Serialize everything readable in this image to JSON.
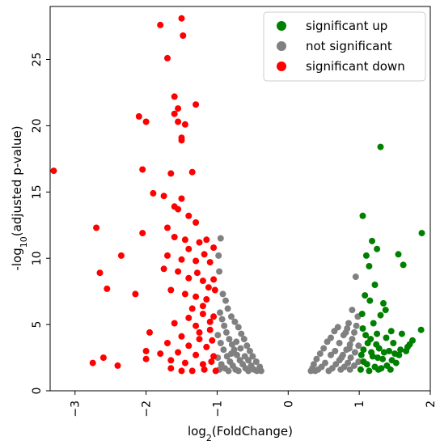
{
  "chart_data": {
    "type": "scatter",
    "title": "",
    "xlabel": "log₂(FoldChange)",
    "xlabel_base": "log",
    "xlabel_sub": "2",
    "xlabel_rest": "(FoldChange)",
    "ylabel": "-log₁₀(adjusted p-value)",
    "ylabel_base": "-log",
    "ylabel_sub": "10",
    "ylabel_rest": "(adjusted p-value)",
    "xlim": [
      -3.35,
      2.0
    ],
    "ylim": [
      0,
      29.0
    ],
    "xticks": [
      -3,
      -2,
      -1,
      0,
      1,
      2
    ],
    "xtick_labels": [
      "−3",
      "−2",
      "−1",
      "0",
      "1",
      "2"
    ],
    "yticks": [
      0,
      5,
      10,
      15,
      20,
      25
    ],
    "ytick_labels": [
      "0",
      "5",
      "10",
      "15",
      "20",
      "25"
    ],
    "grid": false,
    "legend_position": "top-right",
    "series": [
      {
        "name": "significant up",
        "color": "#008000",
        "points": [
          [
            1.3,
            18.4
          ],
          [
            1.88,
            11.9
          ],
          [
            1.05,
            13.2
          ],
          [
            1.18,
            11.3
          ],
          [
            1.25,
            10.7
          ],
          [
            1.1,
            10.2
          ],
          [
            1.55,
            10.3
          ],
          [
            1.14,
            9.4
          ],
          [
            1.62,
            9.5
          ],
          [
            1.22,
            8.0
          ],
          [
            1.08,
            7.2
          ],
          [
            1.15,
            6.8
          ],
          [
            1.34,
            6.6
          ],
          [
            1.37,
            6.1
          ],
          [
            1.04,
            5.8
          ],
          [
            1.3,
            5.7
          ],
          [
            1.2,
            5.1
          ],
          [
            1.87,
            4.6
          ],
          [
            1.45,
            4.5
          ],
          [
            1.6,
            4.3
          ],
          [
            1.75,
            3.8
          ],
          [
            1.12,
            3.6
          ],
          [
            1.68,
            3.3
          ],
          [
            1.58,
            3.1
          ],
          [
            1.35,
            2.9
          ],
          [
            1.05,
            4.7
          ],
          [
            1.09,
            4.2
          ],
          [
            1.16,
            3.9
          ],
          [
            1.24,
            3.5
          ],
          [
            1.28,
            3.2
          ],
          [
            1.42,
            3.0
          ],
          [
            1.5,
            2.8
          ],
          [
            1.19,
            2.6
          ],
          [
            1.33,
            2.4
          ],
          [
            1.46,
            2.3
          ],
          [
            1.06,
            2.2
          ],
          [
            1.11,
            2.0
          ],
          [
            1.22,
            1.8
          ],
          [
            1.39,
            1.9
          ],
          [
            1.52,
            2.1
          ],
          [
            1.02,
            1.6
          ],
          [
            1.14,
            1.5
          ],
          [
            1.27,
            1.6
          ],
          [
            1.31,
            1.7
          ],
          [
            1.44,
            1.6
          ],
          [
            1.06,
            3.1
          ],
          [
            1.17,
            2.9
          ],
          [
            1.26,
            2.5
          ],
          [
            1.03,
            2.7
          ],
          [
            1.38,
            4.0
          ],
          [
            1.48,
            3.6
          ],
          [
            1.56,
            2.7
          ],
          [
            1.66,
            3.0
          ],
          [
            1.71,
            3.5
          ],
          [
            1.25,
            4.3
          ]
        ]
      },
      {
        "name": "not significant",
        "color": "#808080",
        "points": [
          [
            -0.95,
            11.5
          ],
          [
            -0.98,
            10.2
          ],
          [
            -0.97,
            9.0
          ],
          [
            -0.92,
            7.3
          ],
          [
            -0.88,
            6.8
          ],
          [
            -0.85,
            6.2
          ],
          [
            -0.8,
            5.6
          ],
          [
            -0.75,
            5.2
          ],
          [
            -0.7,
            4.8
          ],
          [
            -0.66,
            4.3
          ],
          [
            -0.62,
            3.9
          ],
          [
            -0.58,
            3.4
          ],
          [
            -0.54,
            3.0
          ],
          [
            -0.5,
            2.6
          ],
          [
            -0.45,
            2.2
          ],
          [
            -0.4,
            1.8
          ],
          [
            -0.38,
            1.5
          ],
          [
            -0.96,
            5.9
          ],
          [
            -0.93,
            5.4
          ],
          [
            -0.9,
            4.9
          ],
          [
            -0.87,
            4.4
          ],
          [
            -0.83,
            3.9
          ],
          [
            -0.79,
            3.5
          ],
          [
            -0.76,
            3.1
          ],
          [
            -0.72,
            2.7
          ],
          [
            -0.68,
            2.3
          ],
          [
            -0.64,
            2.0
          ],
          [
            -0.6,
            1.7
          ],
          [
            -0.56,
            1.5
          ],
          [
            -0.99,
            4.2
          ],
          [
            -0.95,
            3.6
          ],
          [
            -0.91,
            3.1
          ],
          [
            -0.86,
            2.6
          ],
          [
            -0.82,
            2.2
          ],
          [
            -0.78,
            1.9
          ],
          [
            -0.74,
            1.6
          ],
          [
            -0.99,
            2.5
          ],
          [
            -0.94,
            2.0
          ],
          [
            -0.89,
            1.7
          ],
          [
            -0.84,
            1.5
          ],
          [
            -0.97,
            1.6
          ],
          [
            -0.7,
            1.5
          ],
          [
            -0.52,
            1.9
          ],
          [
            -0.48,
            1.6
          ],
          [
            -0.44,
            1.5
          ],
          [
            -0.8,
            2.8
          ],
          [
            -0.73,
            3.7
          ],
          [
            -0.67,
            3.2
          ],
          [
            -0.61,
            2.6
          ],
          [
            -0.56,
            2.3
          ],
          [
            0.95,
            8.6
          ],
          [
            0.9,
            6.1
          ],
          [
            0.85,
            5.1
          ],
          [
            0.83,
            4.7
          ],
          [
            0.78,
            4.2
          ],
          [
            0.7,
            4.8
          ],
          [
            0.65,
            4.5
          ],
          [
            0.6,
            4.0
          ],
          [
            0.55,
            3.7
          ],
          [
            0.5,
            3.2
          ],
          [
            0.45,
            2.8
          ],
          [
            0.4,
            2.4
          ],
          [
            0.36,
            2.0
          ],
          [
            0.34,
            1.7
          ],
          [
            0.32,
            1.5
          ],
          [
            0.98,
            5.6
          ],
          [
            0.96,
            4.9
          ],
          [
            0.93,
            4.4
          ],
          [
            0.9,
            3.9
          ],
          [
            0.87,
            3.5
          ],
          [
            0.82,
            3.1
          ],
          [
            0.77,
            2.7
          ],
          [
            0.72,
            2.3
          ],
          [
            0.67,
            2.0
          ],
          [
            0.62,
            1.7
          ],
          [
            0.57,
            1.5
          ],
          [
            0.99,
            3.4
          ],
          [
            0.94,
            2.9
          ],
          [
            0.88,
            2.5
          ],
          [
            0.84,
            2.1
          ],
          [
            0.79,
            1.8
          ],
          [
            0.74,
            1.6
          ],
          [
            0.99,
            2.2
          ],
          [
            0.93,
            1.9
          ],
          [
            0.87,
            1.6
          ],
          [
            0.52,
            2.1
          ],
          [
            0.47,
            1.8
          ],
          [
            0.42,
            1.6
          ],
          [
            0.38,
            1.5
          ],
          [
            0.6,
            2.7
          ],
          [
            0.66,
            3.0
          ],
          [
            0.72,
            3.6
          ],
          [
            0.81,
            4.4
          ],
          [
            0.86,
            3.2
          ],
          [
            0.75,
            2.5
          ]
        ]
      },
      {
        "name": "significant down",
        "color": "#ff0000",
        "points": [
          [
            -1.5,
            28.1
          ],
          [
            -1.48,
            26.8
          ],
          [
            -1.8,
            27.6
          ],
          [
            -1.7,
            25.1
          ],
          [
            -1.6,
            22.2
          ],
          [
            -1.55,
            21.3
          ],
          [
            -1.3,
            21.6
          ],
          [
            -1.55,
            20.3
          ],
          [
            -2.1,
            20.7
          ],
          [
            -2.0,
            20.3
          ],
          [
            -1.6,
            20.9
          ],
          [
            -1.45,
            20.1
          ],
          [
            -1.5,
            19.1
          ],
          [
            -1.5,
            18.9
          ],
          [
            -3.3,
            16.6
          ],
          [
            -2.05,
            16.7
          ],
          [
            -1.65,
            16.4
          ],
          [
            -1.35,
            16.5
          ],
          [
            -1.9,
            14.9
          ],
          [
            -1.75,
            14.7
          ],
          [
            -1.5,
            14.5
          ],
          [
            -1.6,
            13.9
          ],
          [
            -1.55,
            13.7
          ],
          [
            -1.4,
            13.2
          ],
          [
            -1.3,
            12.7
          ],
          [
            -2.7,
            12.3
          ],
          [
            -2.05,
            11.9
          ],
          [
            -1.7,
            12.3
          ],
          [
            -1.6,
            11.6
          ],
          [
            -1.45,
            11.4
          ],
          [
            -1.25,
            11.2
          ],
          [
            -1.15,
            11.4
          ],
          [
            -1.05,
            10.8
          ],
          [
            -2.35,
            10.2
          ],
          [
            -1.7,
            10.2
          ],
          [
            -1.5,
            9.9
          ],
          [
            -1.3,
            9.8
          ],
          [
            -1.1,
            9.7
          ],
          [
            -2.65,
            8.9
          ],
          [
            -1.75,
            9.2
          ],
          [
            -1.55,
            9.0
          ],
          [
            -1.4,
            8.5
          ],
          [
            -1.2,
            8.3
          ],
          [
            -1.05,
            8.4
          ],
          [
            -2.55,
            7.7
          ],
          [
            -2.15,
            7.3
          ],
          [
            -1.65,
            7.6
          ],
          [
            -1.45,
            7.3
          ],
          [
            -1.3,
            7.1
          ],
          [
            -1.15,
            6.9
          ],
          [
            -1.03,
            7.6
          ],
          [
            -1.35,
            6.2
          ],
          [
            -1.2,
            5.8
          ],
          [
            -1.05,
            5.6
          ],
          [
            -1.6,
            5.1
          ],
          [
            -1.3,
            4.9
          ],
          [
            -1.1,
            4.6
          ],
          [
            -1.95,
            4.4
          ],
          [
            -1.5,
            4.1
          ],
          [
            -1.25,
            3.9
          ],
          [
            -1.07,
            3.8
          ],
          [
            -1.7,
            3.6
          ],
          [
            -1.4,
            3.4
          ],
          [
            -1.15,
            3.3
          ],
          [
            -2.0,
            3.0
          ],
          [
            -1.8,
            2.8
          ],
          [
            -1.55,
            2.9
          ],
          [
            -1.3,
            2.7
          ],
          [
            -1.05,
            2.6
          ],
          [
            -2.75,
            2.1
          ],
          [
            -2.6,
            2.5
          ],
          [
            -2.4,
            1.9
          ],
          [
            -2.0,
            2.4
          ],
          [
            -1.65,
            2.3
          ],
          [
            -1.45,
            2.1
          ],
          [
            -1.2,
            2.0
          ],
          [
            -1.08,
            2.2
          ],
          [
            -1.5,
            1.5
          ],
          [
            -1.35,
            1.5
          ],
          [
            -1.18,
            1.6
          ],
          [
            -1.65,
            1.7
          ],
          [
            -1.02,
            1.5
          ],
          [
            -1.25,
            4.4
          ],
          [
            -1.1,
            5.2
          ],
          [
            -1.4,
            5.5
          ],
          [
            -1.2,
            6.4
          ],
          [
            -1.12,
            7.8
          ],
          [
            -1.28,
            8.9
          ],
          [
            -1.18,
            10.3
          ],
          [
            -1.4,
            10.7
          ]
        ]
      }
    ]
  }
}
